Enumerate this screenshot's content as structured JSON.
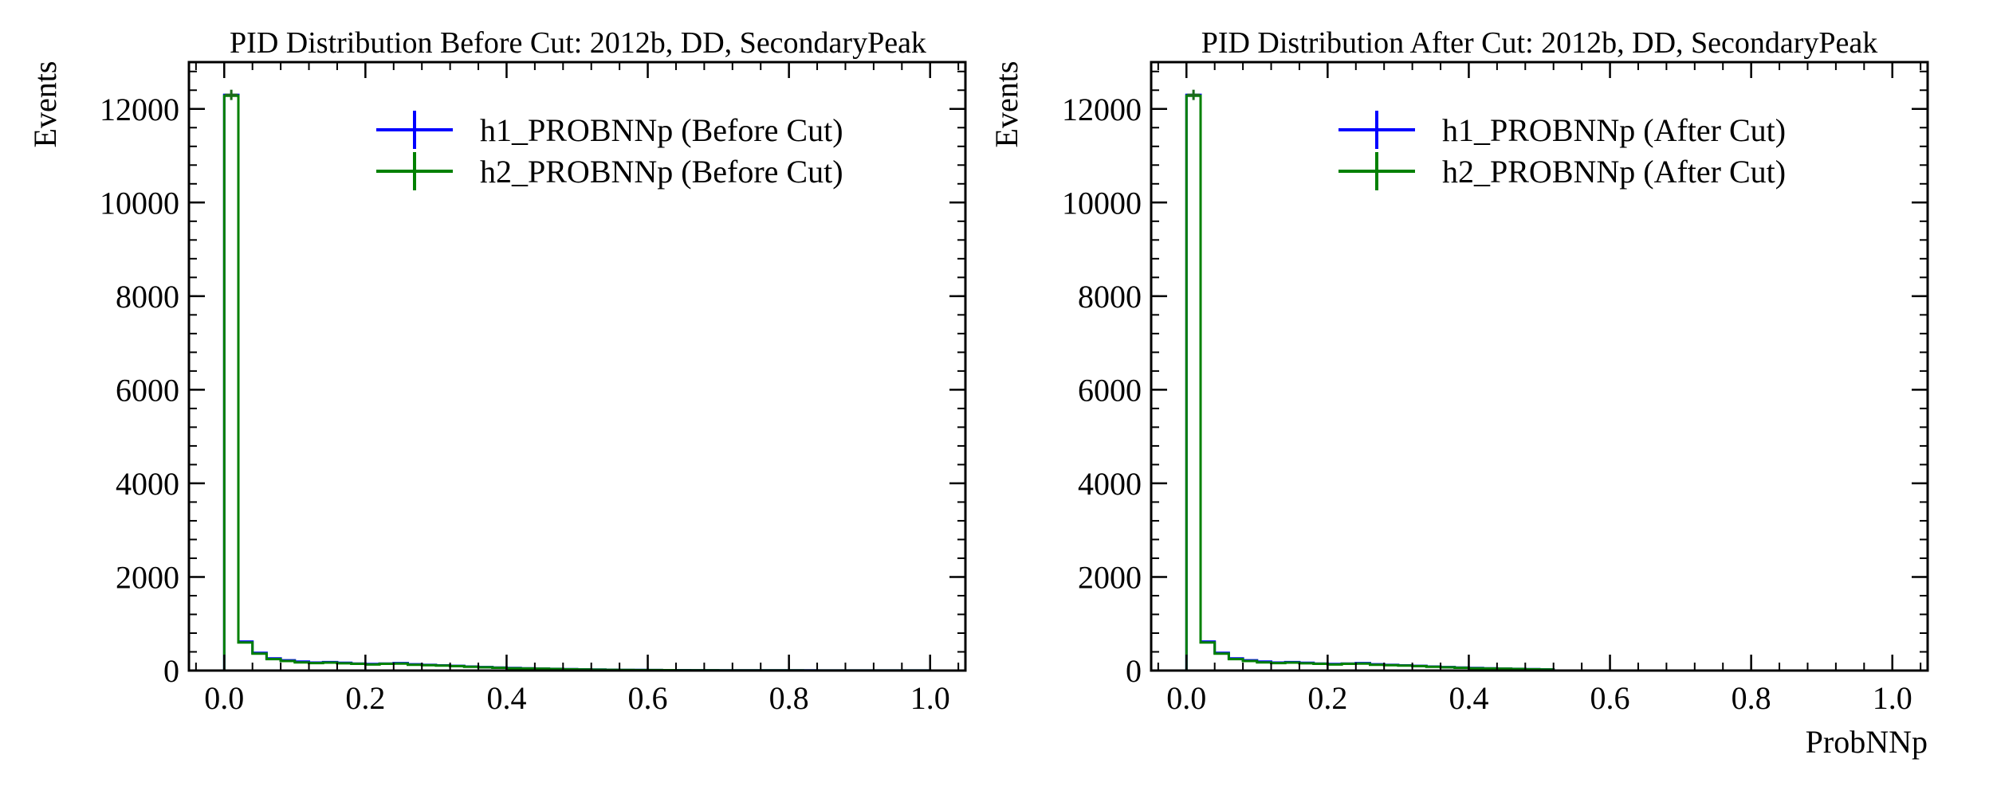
{
  "chart_data": [
    {
      "type": "histogram",
      "title": "PID Distribution Before Cut: 2012b, DD, SecondaryPeak",
      "xlabel": "",
      "ylabel": "Events",
      "xlim": [
        -0.05,
        1.05
      ],
      "ylim": [
        0,
        13000
      ],
      "xticks": [
        "0.0",
        "0.2",
        "0.4",
        "0.6",
        "0.8",
        "1.0"
      ],
      "yticks": [
        "0",
        "2000",
        "4000",
        "6000",
        "8000",
        "10000",
        "12000"
      ],
      "grid": false,
      "legend_position": "upper right",
      "bin_edges": [
        0,
        0.02,
        0.04,
        0.06,
        0.08,
        0.1,
        0.12,
        0.14,
        0.16,
        0.18,
        0.2,
        0.22,
        0.24,
        0.26,
        0.28,
        0.3,
        0.32,
        0.34,
        0.36,
        0.38,
        0.4,
        0.42,
        0.44,
        0.46,
        0.48,
        0.5,
        0.52,
        0.54,
        0.56,
        0.58,
        0.6,
        0.62,
        0.64,
        0.66,
        0.68,
        0.7,
        0.72,
        0.74,
        0.76,
        0.78,
        0.8,
        0.82,
        0.84,
        0.86,
        0.88,
        0.9,
        0.92,
        0.94,
        0.96,
        0.98,
        1.0
      ],
      "series": [
        {
          "name": "h1_PROBNNp (Before Cut)",
          "color": "#0000ff",
          "values": [
            12300,
            620,
            380,
            260,
            220,
            190,
            170,
            180,
            165,
            150,
            140,
            150,
            160,
            135,
            120,
            110,
            100,
            85,
            75,
            65,
            55,
            48,
            42,
            36,
            30,
            25,
            20,
            17,
            14,
            12,
            10,
            9,
            8,
            7,
            6,
            5,
            5,
            4,
            4,
            3,
            3,
            3,
            2,
            2,
            2,
            2,
            1,
            1,
            1,
            1
          ]
        },
        {
          "name": "h2_PROBNNp (Before Cut)",
          "color": "#008000",
          "values": [
            12280,
            600,
            360,
            245,
            205,
            175,
            160,
            170,
            155,
            145,
            130,
            145,
            150,
            125,
            115,
            105,
            95,
            80,
            70,
            60,
            50,
            45,
            40,
            34,
            28,
            24,
            19,
            16,
            13,
            11,
            10,
            8,
            7,
            6,
            6,
            5,
            4,
            4,
            3,
            3,
            3,
            2,
            2,
            2,
            2,
            1,
            1,
            1,
            1,
            1
          ]
        }
      ],
      "errors": [
        {
          "x": 0.01,
          "y": 12300,
          "err": 110
        }
      ]
    },
    {
      "type": "histogram",
      "title": "PID Distribution After Cut: 2012b, DD, SecondaryPeak",
      "xlabel": "ProbNNp",
      "ylabel": "Events",
      "xlim": [
        -0.05,
        1.05
      ],
      "ylim": [
        0,
        13000
      ],
      "xticks": [
        "0.0",
        "0.2",
        "0.4",
        "0.6",
        "0.8",
        "1.0"
      ],
      "yticks": [
        "0",
        "2000",
        "4000",
        "6000",
        "8000",
        "10000",
        "12000"
      ],
      "grid": false,
      "legend_position": "upper right",
      "bin_edges": [
        0,
        0.02,
        0.04,
        0.06,
        0.08,
        0.1,
        0.12,
        0.14,
        0.16,
        0.18,
        0.2,
        0.22,
        0.24,
        0.26,
        0.28,
        0.3,
        0.32,
        0.34,
        0.36,
        0.38,
        0.4,
        0.42,
        0.44,
        0.46,
        0.48,
        0.5,
        0.52,
        0.54,
        0.56,
        0.58,
        0.6,
        0.62,
        0.64,
        0.66,
        0.68,
        0.7,
        0.72,
        0.74,
        0.76,
        0.78,
        0.8,
        0.82,
        0.84,
        0.86,
        0.88,
        0.9,
        0.92,
        0.94,
        0.96,
        0.98,
        1.0
      ],
      "series": [
        {
          "name": "h1_PROBNNp (After Cut)",
          "color": "#0000ff",
          "values": [
            12300,
            620,
            380,
            260,
            220,
            190,
            170,
            180,
            165,
            150,
            140,
            150,
            160,
            135,
            120,
            110,
            100,
            85,
            75,
            65,
            55,
            48,
            42,
            36,
            30,
            25,
            0,
            0,
            0,
            0,
            0,
            0,
            0,
            0,
            0,
            0,
            0,
            0,
            0,
            0,
            0,
            0,
            0,
            0,
            0,
            0,
            0,
            0,
            0,
            0
          ]
        },
        {
          "name": "h2_PROBNNp (After Cut)",
          "color": "#008000",
          "values": [
            12280,
            600,
            360,
            245,
            205,
            175,
            160,
            170,
            155,
            145,
            130,
            145,
            150,
            125,
            115,
            105,
            95,
            80,
            70,
            60,
            50,
            45,
            40,
            34,
            28,
            24,
            0,
            0,
            0,
            0,
            0,
            0,
            0,
            0,
            0,
            0,
            0,
            0,
            0,
            0,
            0,
            0,
            0,
            0,
            0,
            0,
            0,
            0,
            0,
            0
          ]
        }
      ],
      "errors": [
        {
          "x": 0.01,
          "y": 12300,
          "err": 110
        }
      ]
    }
  ]
}
